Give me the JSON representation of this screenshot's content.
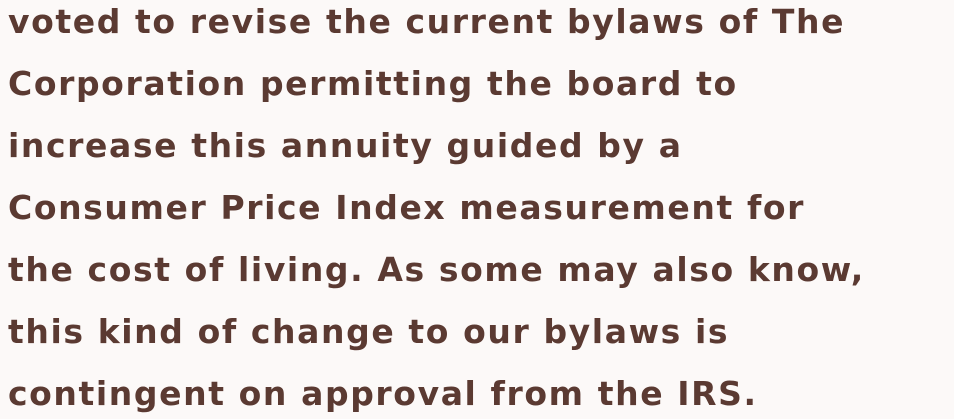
{
  "lines": [
    "voted to revise the current bylaws of The",
    "Corporation permitting the board to",
    "increase this annuity guided by a",
    "Consumer Price Index measurement for",
    "the cost of living. As some may also know,",
    "this kind of change to our bylaws is",
    "contingent on approval from the IRS."
  ]
}
